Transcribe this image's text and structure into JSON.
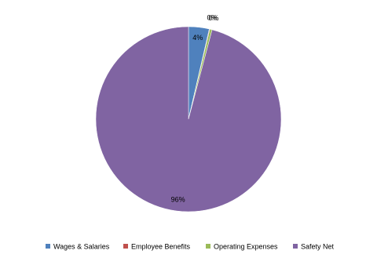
{
  "chart_data": {
    "type": "pie",
    "categories": [
      "Wages & Salaries",
      "Employee Benefits",
      "Operating Expenses",
      "Safety Net"
    ],
    "values": [
      3.6,
      0.1,
      0.4,
      95.9
    ],
    "value_labels": [
      "4%",
      "0%",
      "0%",
      "96%"
    ],
    "colors": [
      "#4f81bd",
      "#c0504d",
      "#9bbb59",
      "#8064a2"
    ],
    "legend": "bottom"
  }
}
